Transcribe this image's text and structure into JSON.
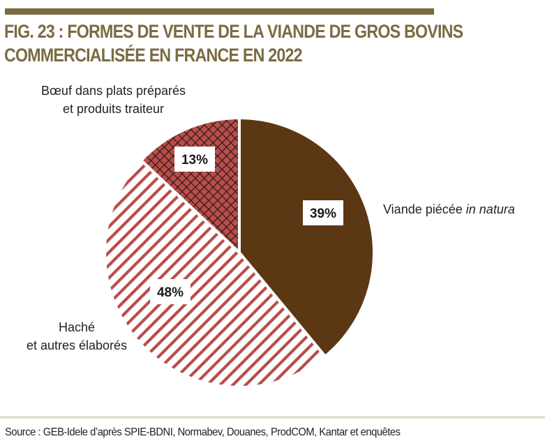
{
  "title_lines": [
    "FIG. 23 : FORMES DE VENTE DE LA VIANDE DE GROS BOVINS",
    "COMMERCIALISÉE EN FRANCE EN 2022"
  ],
  "chart_data": {
    "type": "pie",
    "title": "FIG. 23 : FORMES DE VENTE DE LA VIANDE DE GROS BOVINS COMMERCIALISÉE EN FRANCE EN 2022",
    "unit": "%",
    "slices": [
      {
        "label": "Viande piécée in natura",
        "value": 39,
        "display": "39%",
        "color": "#5c3713",
        "pattern": "solid"
      },
      {
        "label": "Haché et autres élaborés",
        "value": 48,
        "display": "48%",
        "color": "#b84d4c",
        "pattern": "diagonal-stripes"
      },
      {
        "label": "Bœuf dans plats préparés et produits traiteur",
        "value": 13,
        "display": "13%",
        "color": "#b84d4c",
        "pattern": "crosshatch"
      }
    ],
    "start": "12 o'clock, clockwise"
  },
  "labels": {
    "viande": {
      "text": "Viande piécée ",
      "emphasis": "in natura"
    },
    "hache": [
      "Haché",
      "et autres élaborés"
    ],
    "plats": [
      "Bœuf dans plats préparés",
      "et produits traiteur"
    ]
  },
  "source": "Source : GEB-Idele d’après SPIE-BDNI, Normabev, Douanes, ProdCOM, Kantar et enquêtes",
  "colors": {
    "title": "#7a6b43",
    "brown": "#5c3713",
    "red": "#b84d4c"
  }
}
